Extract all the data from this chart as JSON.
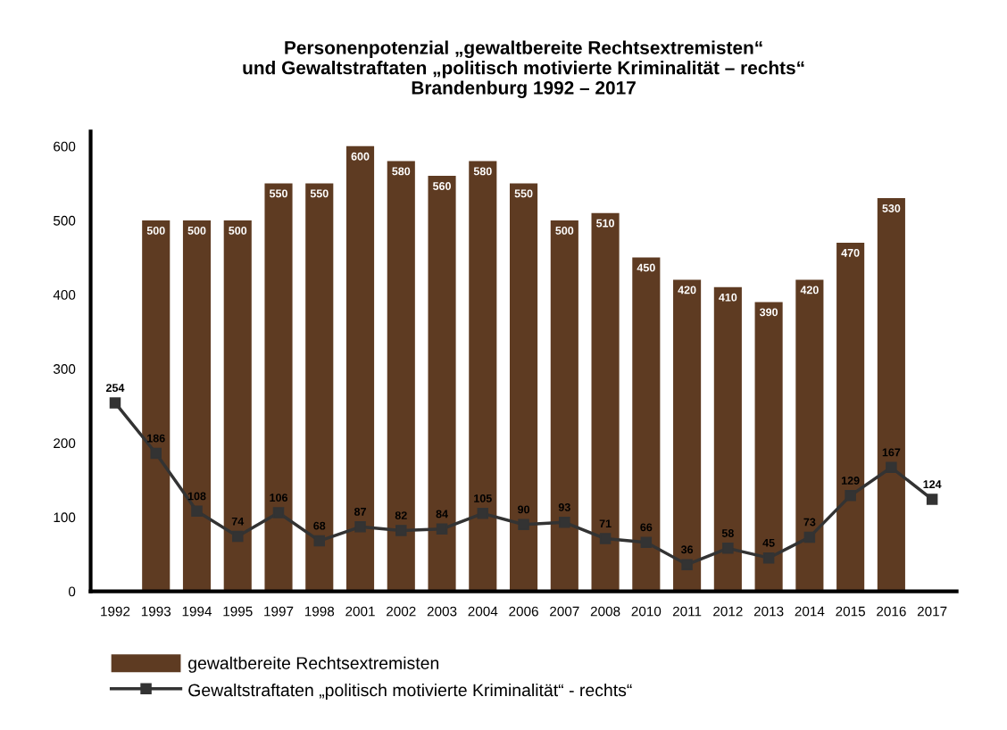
{
  "chart_data": {
    "type": "bar",
    "title": "Personenpotenzial „gewaltbereite Rechtsextremisten“\nund Gewaltstraftaten „politisch motivierte Kriminalität – rechts“\nBrandenburg 1992 – 2017",
    "categories": [
      "1992",
      "1993",
      "1994",
      "1995",
      "1997",
      "1998",
      "2001",
      "2002",
      "2003",
      "2004",
      "2006",
      "2007",
      "2008",
      "2010",
      "2011",
      "2012",
      "2013",
      "2014",
      "2015",
      "2016",
      "2017"
    ],
    "series": [
      {
        "name": "gewaltbereite Rechtsextremisten",
        "color": "#5e3b22",
        "values": [
          null,
          500,
          500,
          500,
          550,
          550,
          600,
          580,
          560,
          580,
          550,
          500,
          510,
          450,
          420,
          410,
          390,
          420,
          470,
          530,
          null
        ]
      },
      {
        "name": "Gewaltstraftaten „politisch motivierte Kriminalität“ - rechts“",
        "type": "line",
        "color": "#333333",
        "marker": "square",
        "values": [
          254,
          186,
          108,
          74,
          106,
          68,
          87,
          82,
          84,
          105,
          90,
          93,
          71,
          66,
          36,
          58,
          45,
          73,
          129,
          167,
          124
        ]
      }
    ],
    "ylim": [
      0,
      620
    ],
    "yticks": [
      0,
      100,
      200,
      300,
      400,
      500,
      600
    ],
    "data_labels": true,
    "grid": false,
    "legend": "bottom left"
  }
}
